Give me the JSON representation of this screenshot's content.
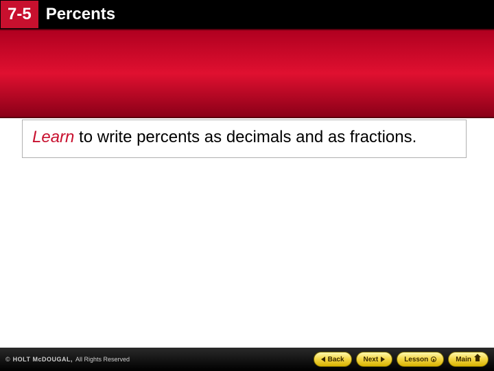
{
  "header": {
    "lesson_number": "7-5",
    "title": "Percents"
  },
  "body": {
    "learn_word": "Learn",
    "learn_text": " to write percents as decimals and as fractions."
  },
  "footer": {
    "brand": "HOLT McDOUGAL,",
    "rights": "All Rights Reserved",
    "copyright_symbol": "©",
    "nav": {
      "back": "Back",
      "next": "Next",
      "lesson": "Lesson",
      "main": "Main"
    }
  },
  "colors": {
    "brand_red": "#c8102e",
    "band_top": "#b00020",
    "band_mid": "#e01030",
    "band_bottom": "#8a0018",
    "footer_bg": "#000000",
    "btn_top": "#fff8b0",
    "btn_mid": "#f5d94a",
    "btn_bottom": "#d8b200"
  }
}
